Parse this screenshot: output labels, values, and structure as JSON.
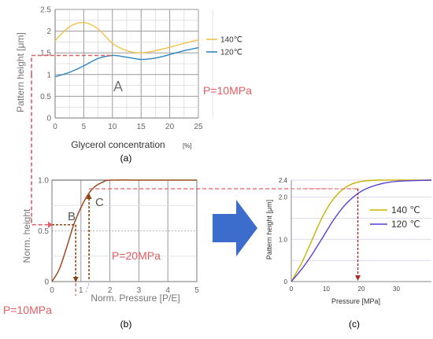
{
  "panels": {
    "a": {
      "caption": "(a)",
      "xlabel": "Glycerol concentration",
      "xunit": "[%]",
      "ylabel": "Pattern height [μm]",
      "note": "P=10MPa",
      "marker_label": "A",
      "xticks": [
        "0",
        "5",
        "10",
        "15",
        "20",
        "25"
      ],
      "yticks": [
        "0",
        "0.5",
        "1",
        "1.5",
        "2",
        "2.5"
      ]
    },
    "b": {
      "caption": "(b)",
      "xlabel": "Norm. Pressure [P/E]",
      "ylabel": "Norm. height",
      "xticks": [
        "0",
        "1",
        "2",
        "3",
        "4",
        "5"
      ],
      "yticks": [
        "0",
        "0.5",
        "1.0"
      ],
      "label_b": "B",
      "label_c": "C",
      "note_20": "P=20MPa",
      "note_10": "P=10MPa"
    },
    "c": {
      "caption": "(c)",
      "xlabel": "Pressure [MPa]",
      "ylabel": "Pattern height [μm]",
      "xticks": [
        "0",
        "10",
        "20",
        "30"
      ],
      "yticks": [
        "0",
        "1.0",
        "2.0",
        "2.4"
      ]
    }
  },
  "chart_data": [
    {
      "type": "line",
      "xlim": [
        0,
        25
      ],
      "ylim": [
        0,
        2.5
      ],
      "grid": true,
      "legend": "right",
      "series": [
        {
          "name": "140℃",
          "color": "#f2c14e",
          "x": [
            0,
            2.5,
            5,
            7.5,
            10,
            12.5,
            15,
            17.5,
            20,
            22.5,
            25
          ],
          "y": [
            1.78,
            2.1,
            2.2,
            2.05,
            1.72,
            1.55,
            1.5,
            1.55,
            1.63,
            1.72,
            1.8
          ]
        },
        {
          "name": "120℃",
          "color": "#2e86c1",
          "x": [
            0,
            2.5,
            5,
            7.5,
            10,
            12.5,
            15,
            17.5,
            20,
            22.5,
            25
          ],
          "y": [
            0.95,
            1.05,
            1.2,
            1.37,
            1.44,
            1.4,
            1.35,
            1.38,
            1.46,
            1.55,
            1.62
          ]
        }
      ]
    },
    {
      "type": "line",
      "xlim": [
        0,
        5
      ],
      "ylim": [
        0,
        1.0
      ],
      "grid": true,
      "series": [
        {
          "color": "#9c4a1e",
          "x": [
            0,
            0.25,
            0.5,
            0.75,
            1.0,
            1.25,
            1.5,
            1.75,
            2.0,
            3.0,
            4.0,
            5.0
          ],
          "y": [
            0,
            0.12,
            0.33,
            0.56,
            0.73,
            0.86,
            0.94,
            0.98,
            1.0,
            1.0,
            1.0,
            1.0
          ]
        }
      ]
    },
    {
      "type": "line",
      "xlim": [
        0,
        40
      ],
      "ylim": [
        0,
        2.4
      ],
      "grid": true,
      "legend": "right",
      "series": [
        {
          "name": "140 ℃",
          "color": "#c8b400",
          "x": [
            0,
            3,
            6,
            9,
            12,
            15,
            18,
            21,
            25,
            30,
            40
          ],
          "y": [
            0,
            0.45,
            1.0,
            1.55,
            1.95,
            2.2,
            2.33,
            2.38,
            2.4,
            2.4,
            2.4
          ]
        },
        {
          "name": "120 ℃",
          "color": "#5a3fd8",
          "x": [
            0,
            3,
            6,
            9,
            12,
            15,
            18,
            21,
            25,
            30,
            40
          ],
          "y": [
            0,
            0.3,
            0.65,
            1.05,
            1.45,
            1.78,
            2.02,
            2.18,
            2.3,
            2.37,
            2.4
          ]
        }
      ]
    }
  ]
}
